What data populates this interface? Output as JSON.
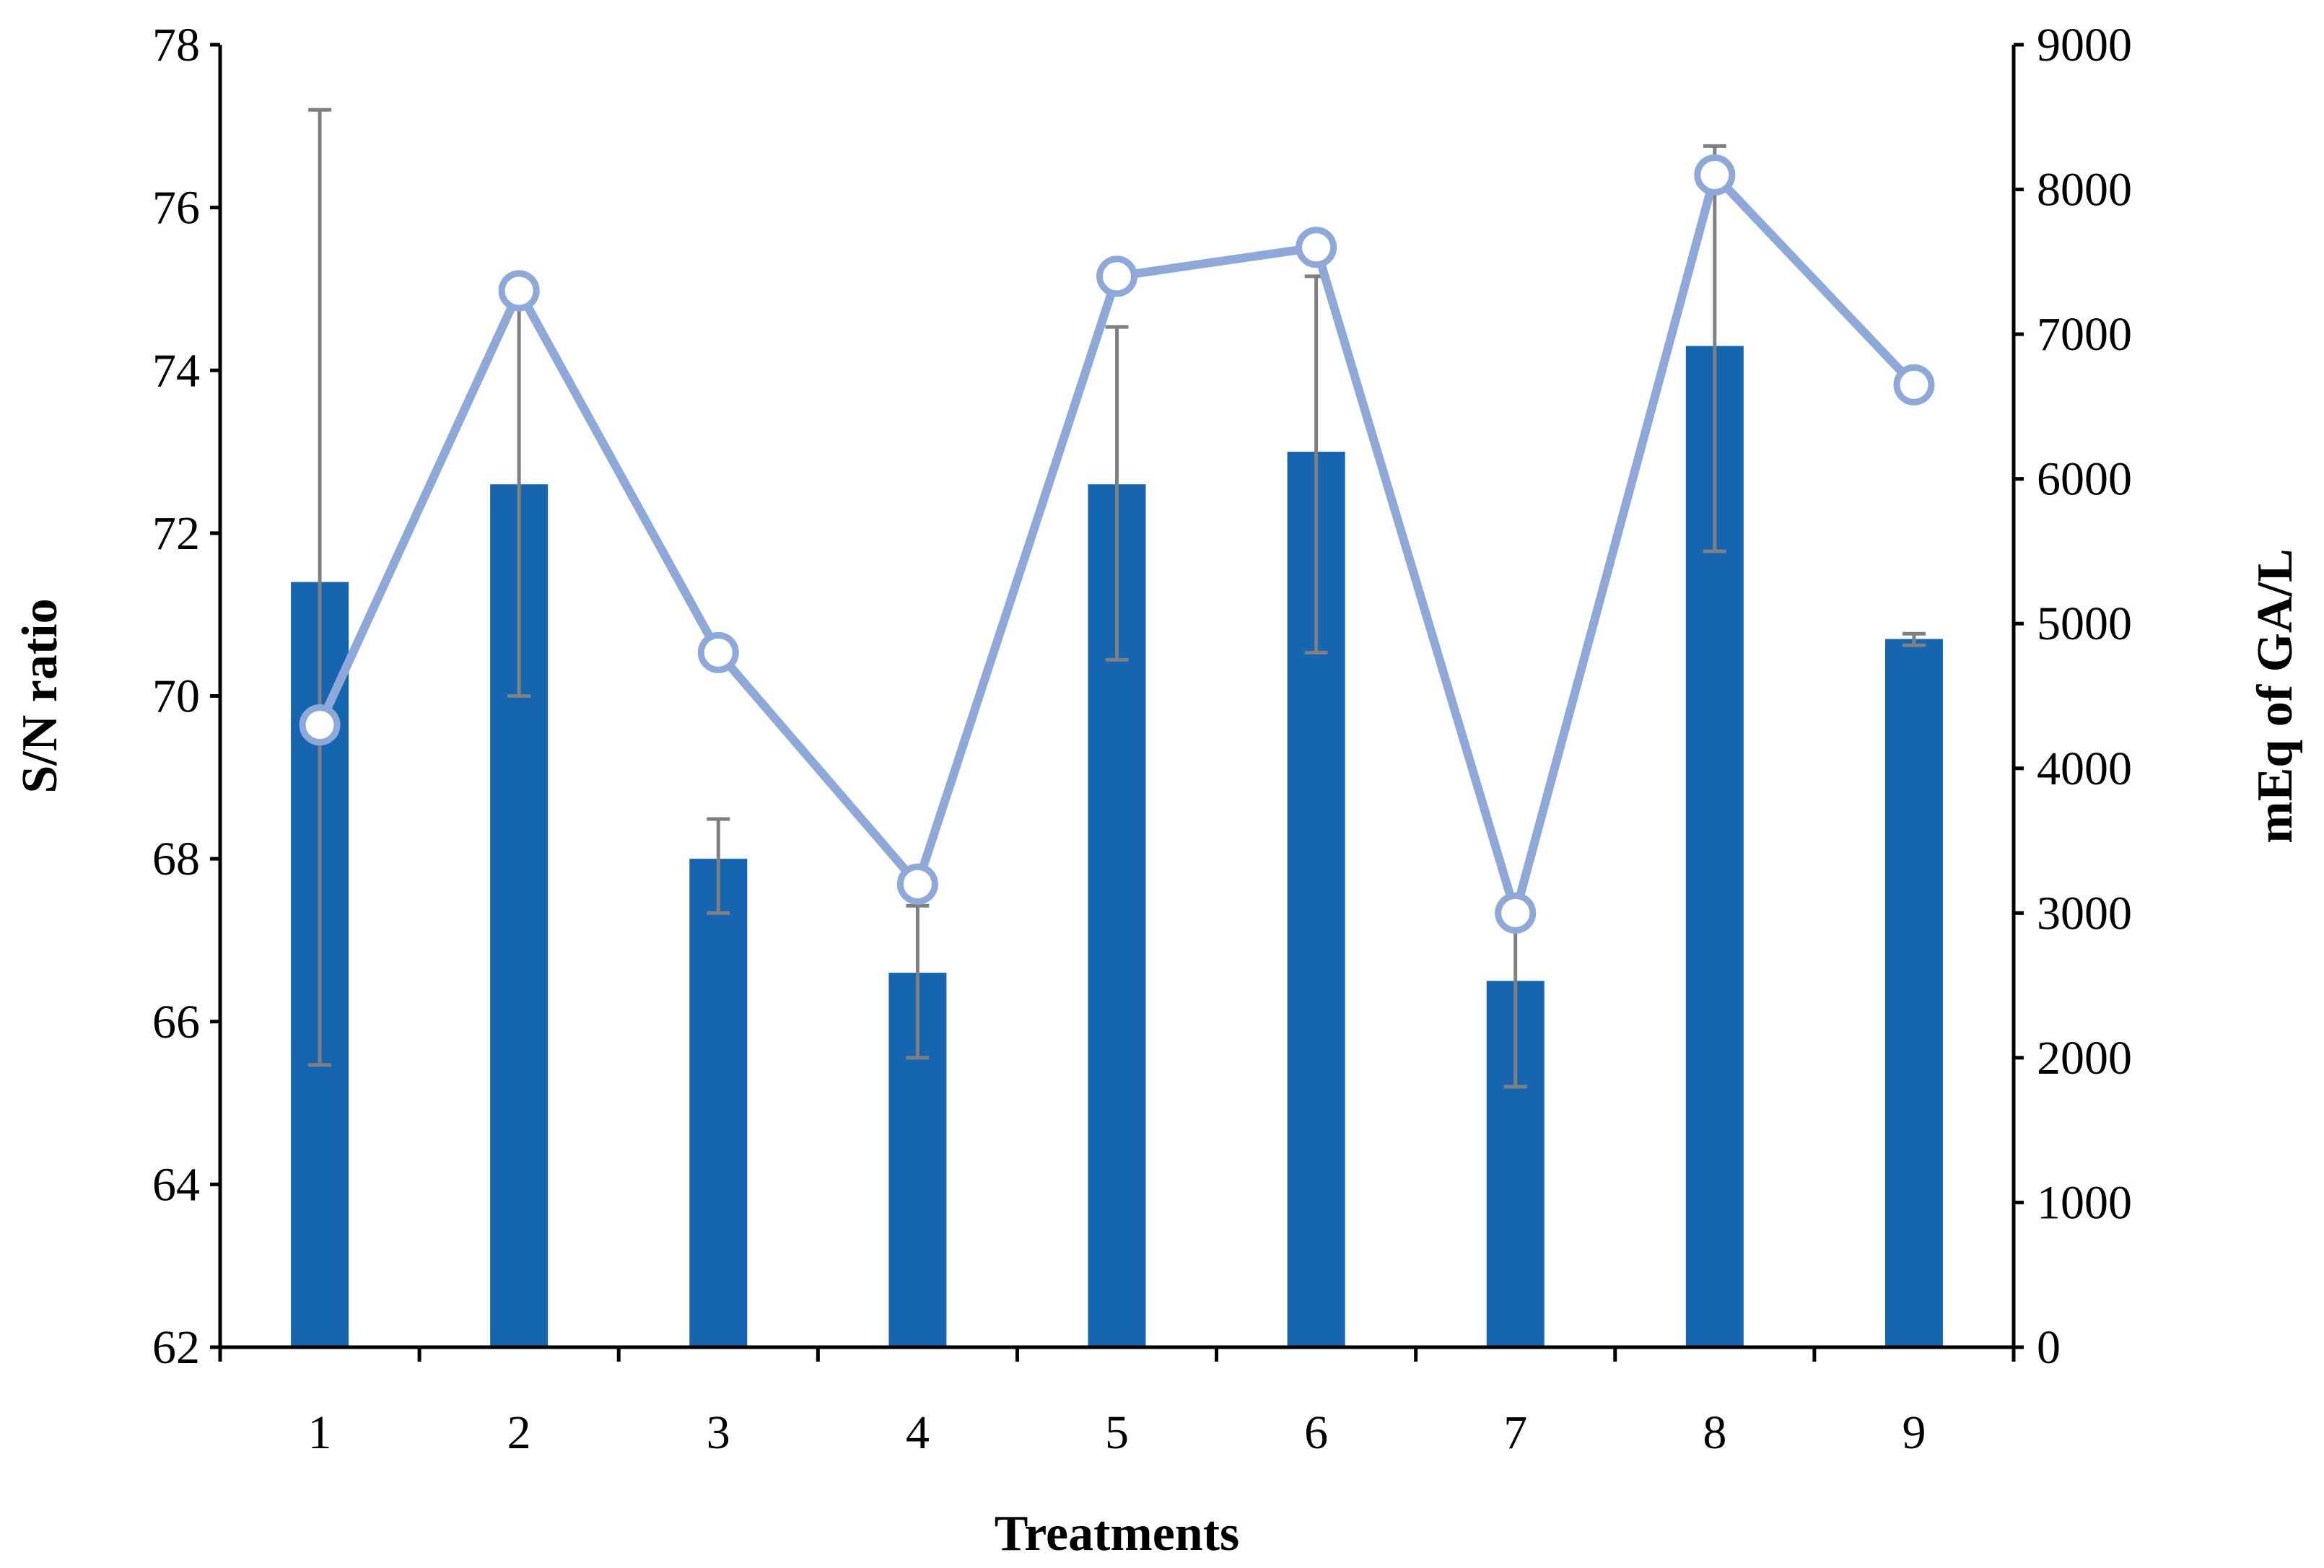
{
  "chart_data": {
    "type": "bar",
    "categories": [
      "1",
      "2",
      "3",
      "4",
      "5",
      "6",
      "7",
      "8",
      "9"
    ],
    "xlabel": "Treatments",
    "ylabel": "S/N ratio",
    "y2label": "mEq of GA/L",
    "ylim": [
      62,
      78
    ],
    "y2lim": [
      0,
      9000
    ],
    "yticks": [
      "62",
      "64",
      "66",
      "68",
      "70",
      "72",
      "74",
      "76",
      "78"
    ],
    "y2ticks": [
      "0",
      "1000",
      "2000",
      "3000",
      "4000",
      "5000",
      "6000",
      "7000",
      "8000",
      "9000"
    ],
    "grid": false,
    "legend": "none",
    "series": [
      {
        "kind": "bar",
        "axis": "left",
        "color": "#1565B0",
        "values": [
          71.4,
          72.6,
          68.0,
          66.6,
          72.6,
          73.0,
          66.5,
          74.3,
          70.7
        ]
      },
      {
        "kind": "line",
        "axis": "right",
        "color": "#8FA8DA",
        "marker": "circle-hollow",
        "values": [
          4300,
          7300,
          4800,
          3200,
          7400,
          7600,
          3000,
          8100,
          6650
        ],
        "error_low": [
          1950,
          4500,
          3000,
          2000,
          4750,
          4800,
          1800,
          5500,
          4850
        ],
        "error_high": [
          8550,
          7350,
          3650,
          3050,
          7050,
          7400,
          3000,
          8300,
          4930
        ],
        "error_color": "#808080"
      }
    ]
  }
}
